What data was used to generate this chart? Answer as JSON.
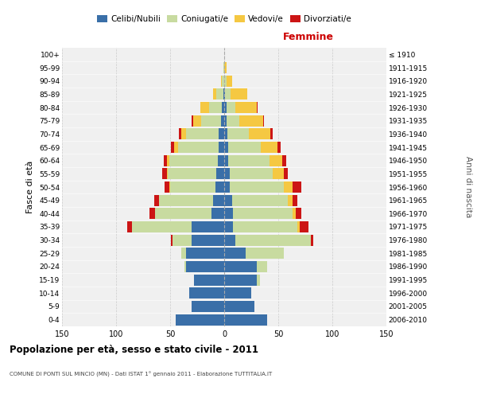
{
  "age_groups": [
    "0-4",
    "5-9",
    "10-14",
    "15-19",
    "20-24",
    "25-29",
    "30-34",
    "35-39",
    "40-44",
    "45-49",
    "50-54",
    "55-59",
    "60-64",
    "65-69",
    "70-74",
    "75-79",
    "80-84",
    "85-89",
    "90-94",
    "95-99",
    "100+"
  ],
  "birth_years": [
    "2006-2010",
    "2001-2005",
    "1996-2000",
    "1991-1995",
    "1986-1990",
    "1981-1985",
    "1976-1980",
    "1971-1975",
    "1966-1970",
    "1961-1965",
    "1956-1960",
    "1951-1955",
    "1946-1950",
    "1941-1945",
    "1936-1940",
    "1931-1935",
    "1926-1930",
    "1921-1925",
    "1916-1920",
    "1911-1915",
    "≤ 1910"
  ],
  "males": {
    "celibi": [
      45,
      30,
      32,
      28,
      35,
      35,
      30,
      30,
      12,
      10,
      8,
      7,
      6,
      5,
      5,
      3,
      2,
      1,
      0,
      0,
      0
    ],
    "coniugati": [
      0,
      0,
      0,
      0,
      2,
      5,
      18,
      55,
      52,
      50,
      42,
      45,
      45,
      38,
      30,
      18,
      12,
      6,
      2,
      1,
      0
    ],
    "vedovi": [
      0,
      0,
      0,
      0,
      0,
      0,
      0,
      0,
      0,
      0,
      1,
      1,
      2,
      3,
      5,
      8,
      8,
      3,
      1,
      0,
      0
    ],
    "divorziati": [
      0,
      0,
      0,
      0,
      0,
      0,
      1,
      5,
      5,
      5,
      4,
      4,
      3,
      3,
      2,
      1,
      0,
      0,
      0,
      0,
      0
    ]
  },
  "females": {
    "nubili": [
      40,
      28,
      25,
      30,
      30,
      20,
      10,
      8,
      8,
      7,
      5,
      5,
      4,
      4,
      3,
      2,
      2,
      1,
      0,
      0,
      0
    ],
    "coniugate": [
      0,
      0,
      0,
      3,
      10,
      35,
      70,
      60,
      55,
      52,
      50,
      40,
      38,
      30,
      20,
      12,
      8,
      5,
      2,
      0,
      0
    ],
    "vedove": [
      0,
      0,
      0,
      0,
      0,
      0,
      0,
      2,
      3,
      4,
      8,
      10,
      12,
      15,
      20,
      22,
      20,
      15,
      5,
      2,
      0
    ],
    "divorziate": [
      0,
      0,
      0,
      0,
      0,
      0,
      2,
      8,
      5,
      5,
      8,
      4,
      3,
      3,
      2,
      1,
      1,
      0,
      0,
      0,
      0
    ]
  },
  "colors": {
    "celibi": "#3a6fa8",
    "coniugati": "#c8dba0",
    "vedovi": "#f5c842",
    "divorziati": "#cc1515"
  },
  "xlim": 150,
  "title": "Popolazione per età, sesso e stato civile - 2011",
  "subtitle": "COMUNE DI PONTI SUL MINCIO (MN) - Dati ISTAT 1° gennaio 2011 - Elaborazione TUTTITALIA.IT",
  "legend_labels": [
    "Celibi/Nubili",
    "Coniugati/e",
    "Vedovi/e",
    "Divorziati/e"
  ],
  "right_label": "Femmine",
  "y_label": "Fasce di età",
  "right_y_label": "Anni di nascita",
  "background_color": "#ffffff",
  "plot_bg_color": "#f0f0f0",
  "grid_color": "#cccccc"
}
